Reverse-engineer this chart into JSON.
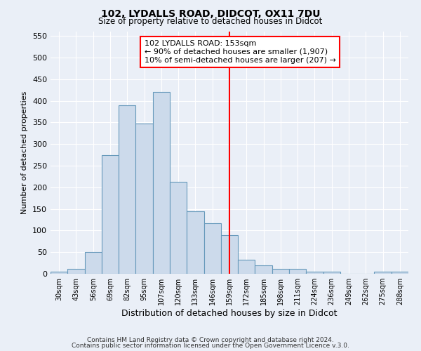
{
  "title": "102, LYDALLS ROAD, DIDCOT, OX11 7DU",
  "subtitle": "Size of property relative to detached houses in Didcot",
  "xlabel": "Distribution of detached houses by size in Didcot",
  "ylabel": "Number of detached properties",
  "bar_color": "#ccdaeb",
  "bar_edge_color": "#6699bb",
  "categories": [
    "30sqm",
    "43sqm",
    "56sqm",
    "69sqm",
    "82sqm",
    "95sqm",
    "107sqm",
    "120sqm",
    "133sqm",
    "146sqm",
    "159sqm",
    "172sqm",
    "185sqm",
    "198sqm",
    "211sqm",
    "224sqm",
    "236sqm",
    "249sqm",
    "262sqm",
    "275sqm",
    "288sqm"
  ],
  "values": [
    5,
    12,
    50,
    275,
    390,
    347,
    420,
    212,
    145,
    117,
    90,
    32,
    20,
    12,
    12,
    5,
    5,
    0,
    0,
    5,
    5
  ],
  "red_line_x": 10.0,
  "annotation_line1": "102 LYDALLS ROAD: 153sqm",
  "annotation_line2": "← 90% of detached houses are smaller (1,907)",
  "annotation_line3": "10% of semi-detached houses are larger (207) →",
  "ylim": [
    0,
    560
  ],
  "yticks": [
    0,
    50,
    100,
    150,
    200,
    250,
    300,
    350,
    400,
    450,
    500,
    550
  ],
  "footer1": "Contains HM Land Registry data © Crown copyright and database right 2024.",
  "footer2": "Contains public sector information licensed under the Open Government Licence v.3.0.",
  "background_color": "#eaeff7",
  "grid_color": "white"
}
